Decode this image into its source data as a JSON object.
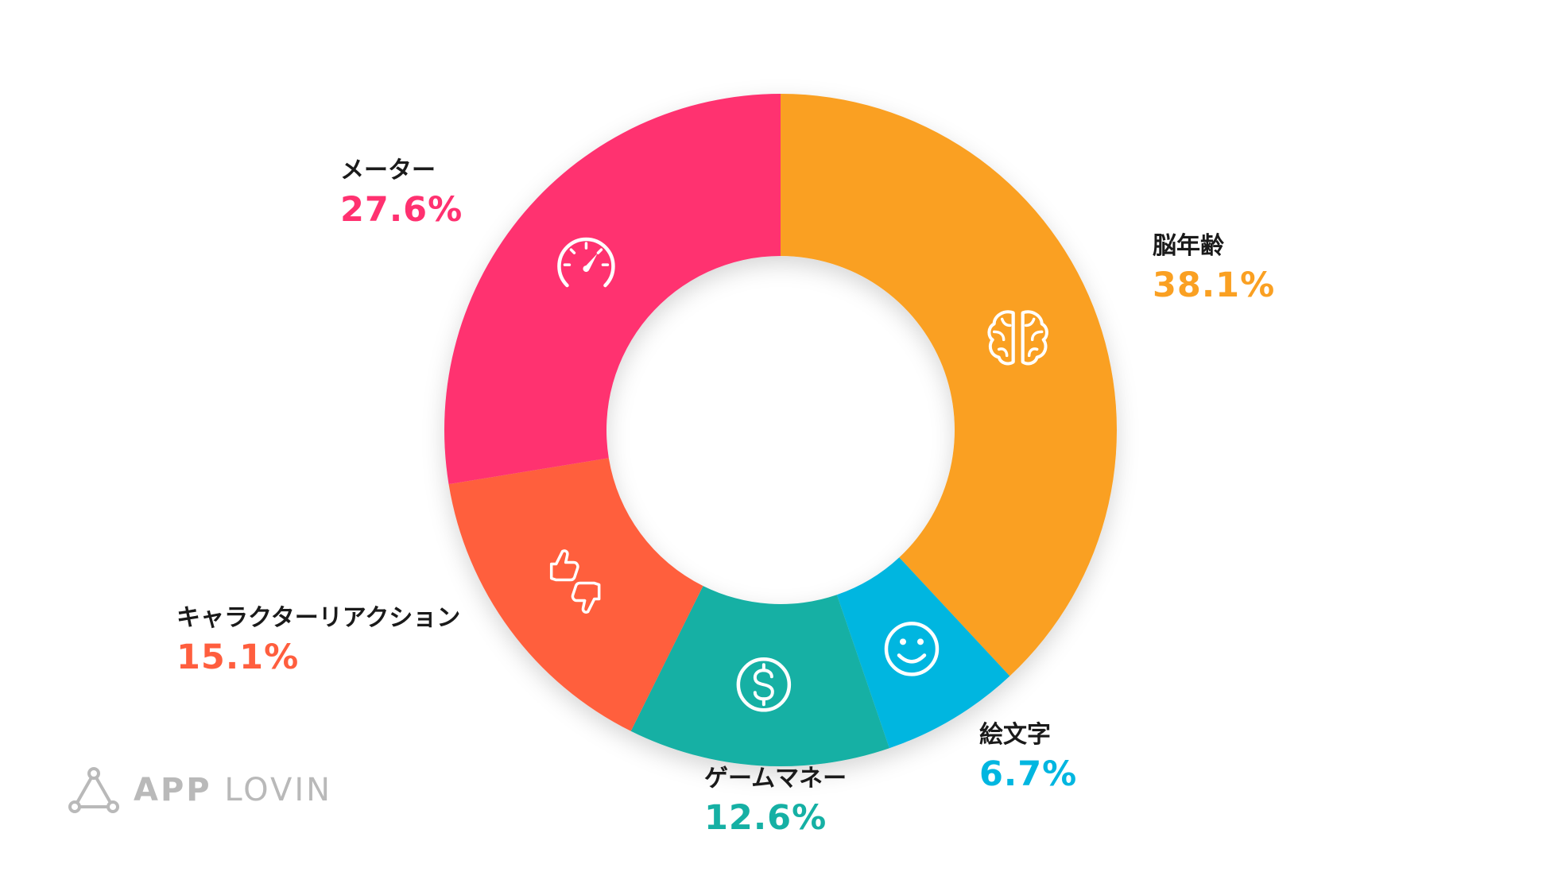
{
  "chart_data": {
    "type": "pie",
    "style": "donut",
    "title": "",
    "slices": [
      {
        "name": "脳年齢",
        "value": 38.1,
        "label": "38.1%",
        "color": "#FAA022",
        "icon": "brain-icon"
      },
      {
        "name": "絵文字",
        "value": 6.7,
        "label": "6.7%",
        "color": "#00B6E0",
        "icon": "smiley-face-icon"
      },
      {
        "name": "ゲームマネー",
        "value": 12.6,
        "label": "12.6%",
        "color": "#15B0A4",
        "icon": "dollar-coin-icon"
      },
      {
        "name": "キャラクターリアクション",
        "value": 15.1,
        "label": "15.1%",
        "color": "#FF5E3E",
        "icon": "thumbs-up-down-icon"
      },
      {
        "name": "メーター",
        "value": 27.6,
        "label": "27.6%",
        "color": "#FF3170",
        "icon": "speedometer-icon"
      }
    ]
  },
  "brand": {
    "logo_primary": "APP",
    "logo_secondary": "LOVIN",
    "logo_color": "#B9B9B9"
  }
}
